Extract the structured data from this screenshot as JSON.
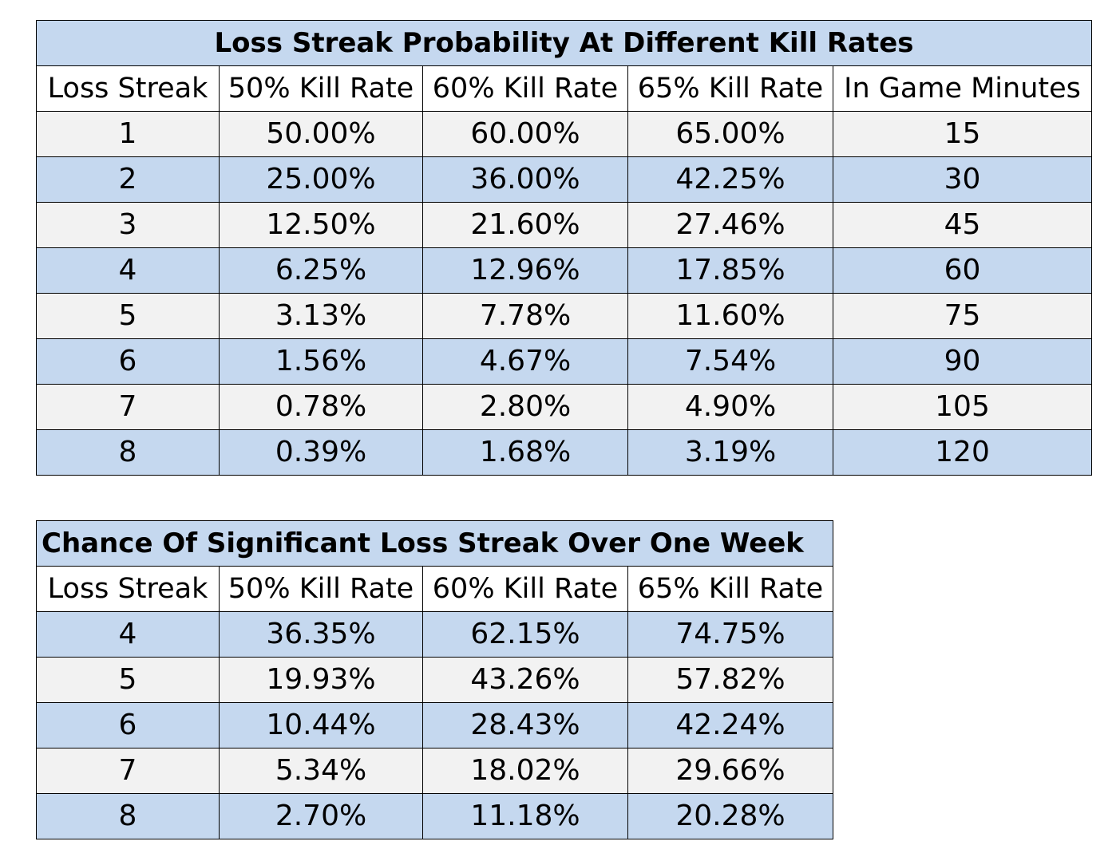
{
  "table1": {
    "title": "Loss Streak Probability At Different Kill Rates",
    "headers": [
      "Loss Streak",
      "50% Kill Rate",
      "60% Kill Rate",
      "65% Kill Rate",
      "In Game Minutes"
    ],
    "rows": [
      [
        "1",
        "50.00%",
        "60.00%",
        "65.00%",
        "15"
      ],
      [
        "2",
        "25.00%",
        "36.00%",
        "42.25%",
        "30"
      ],
      [
        "3",
        "12.50%",
        "21.60%",
        "27.46%",
        "45"
      ],
      [
        "4",
        "6.25%",
        "12.96%",
        "17.85%",
        "60"
      ],
      [
        "5",
        "3.13%",
        "7.78%",
        "11.60%",
        "75"
      ],
      [
        "6",
        "1.56%",
        "4.67%",
        "7.54%",
        "90"
      ],
      [
        "7",
        "0.78%",
        "2.80%",
        "4.90%",
        "105"
      ],
      [
        "8",
        "0.39%",
        "1.68%",
        "3.19%",
        "120"
      ]
    ]
  },
  "table2": {
    "title": "Chance Of Significant Loss Streak Over One Week",
    "headers": [
      "Loss Streak",
      "50% Kill Rate",
      "60% Kill Rate",
      "65% Kill Rate"
    ],
    "rows": [
      [
        "4",
        "36.35%",
        "62.15%",
        "74.75%"
      ],
      [
        "5",
        "19.93%",
        "43.26%",
        "57.82%"
      ],
      [
        "6",
        "10.44%",
        "28.43%",
        "42.24%"
      ],
      [
        "7",
        "5.34%",
        "18.02%",
        "29.66%"
      ],
      [
        "8",
        "2.70%",
        "11.18%",
        "20.28%"
      ]
    ]
  },
  "colors": {
    "header_blue": "#c5d8ef",
    "row_light": "#f2f2f2",
    "border": "#000000"
  }
}
